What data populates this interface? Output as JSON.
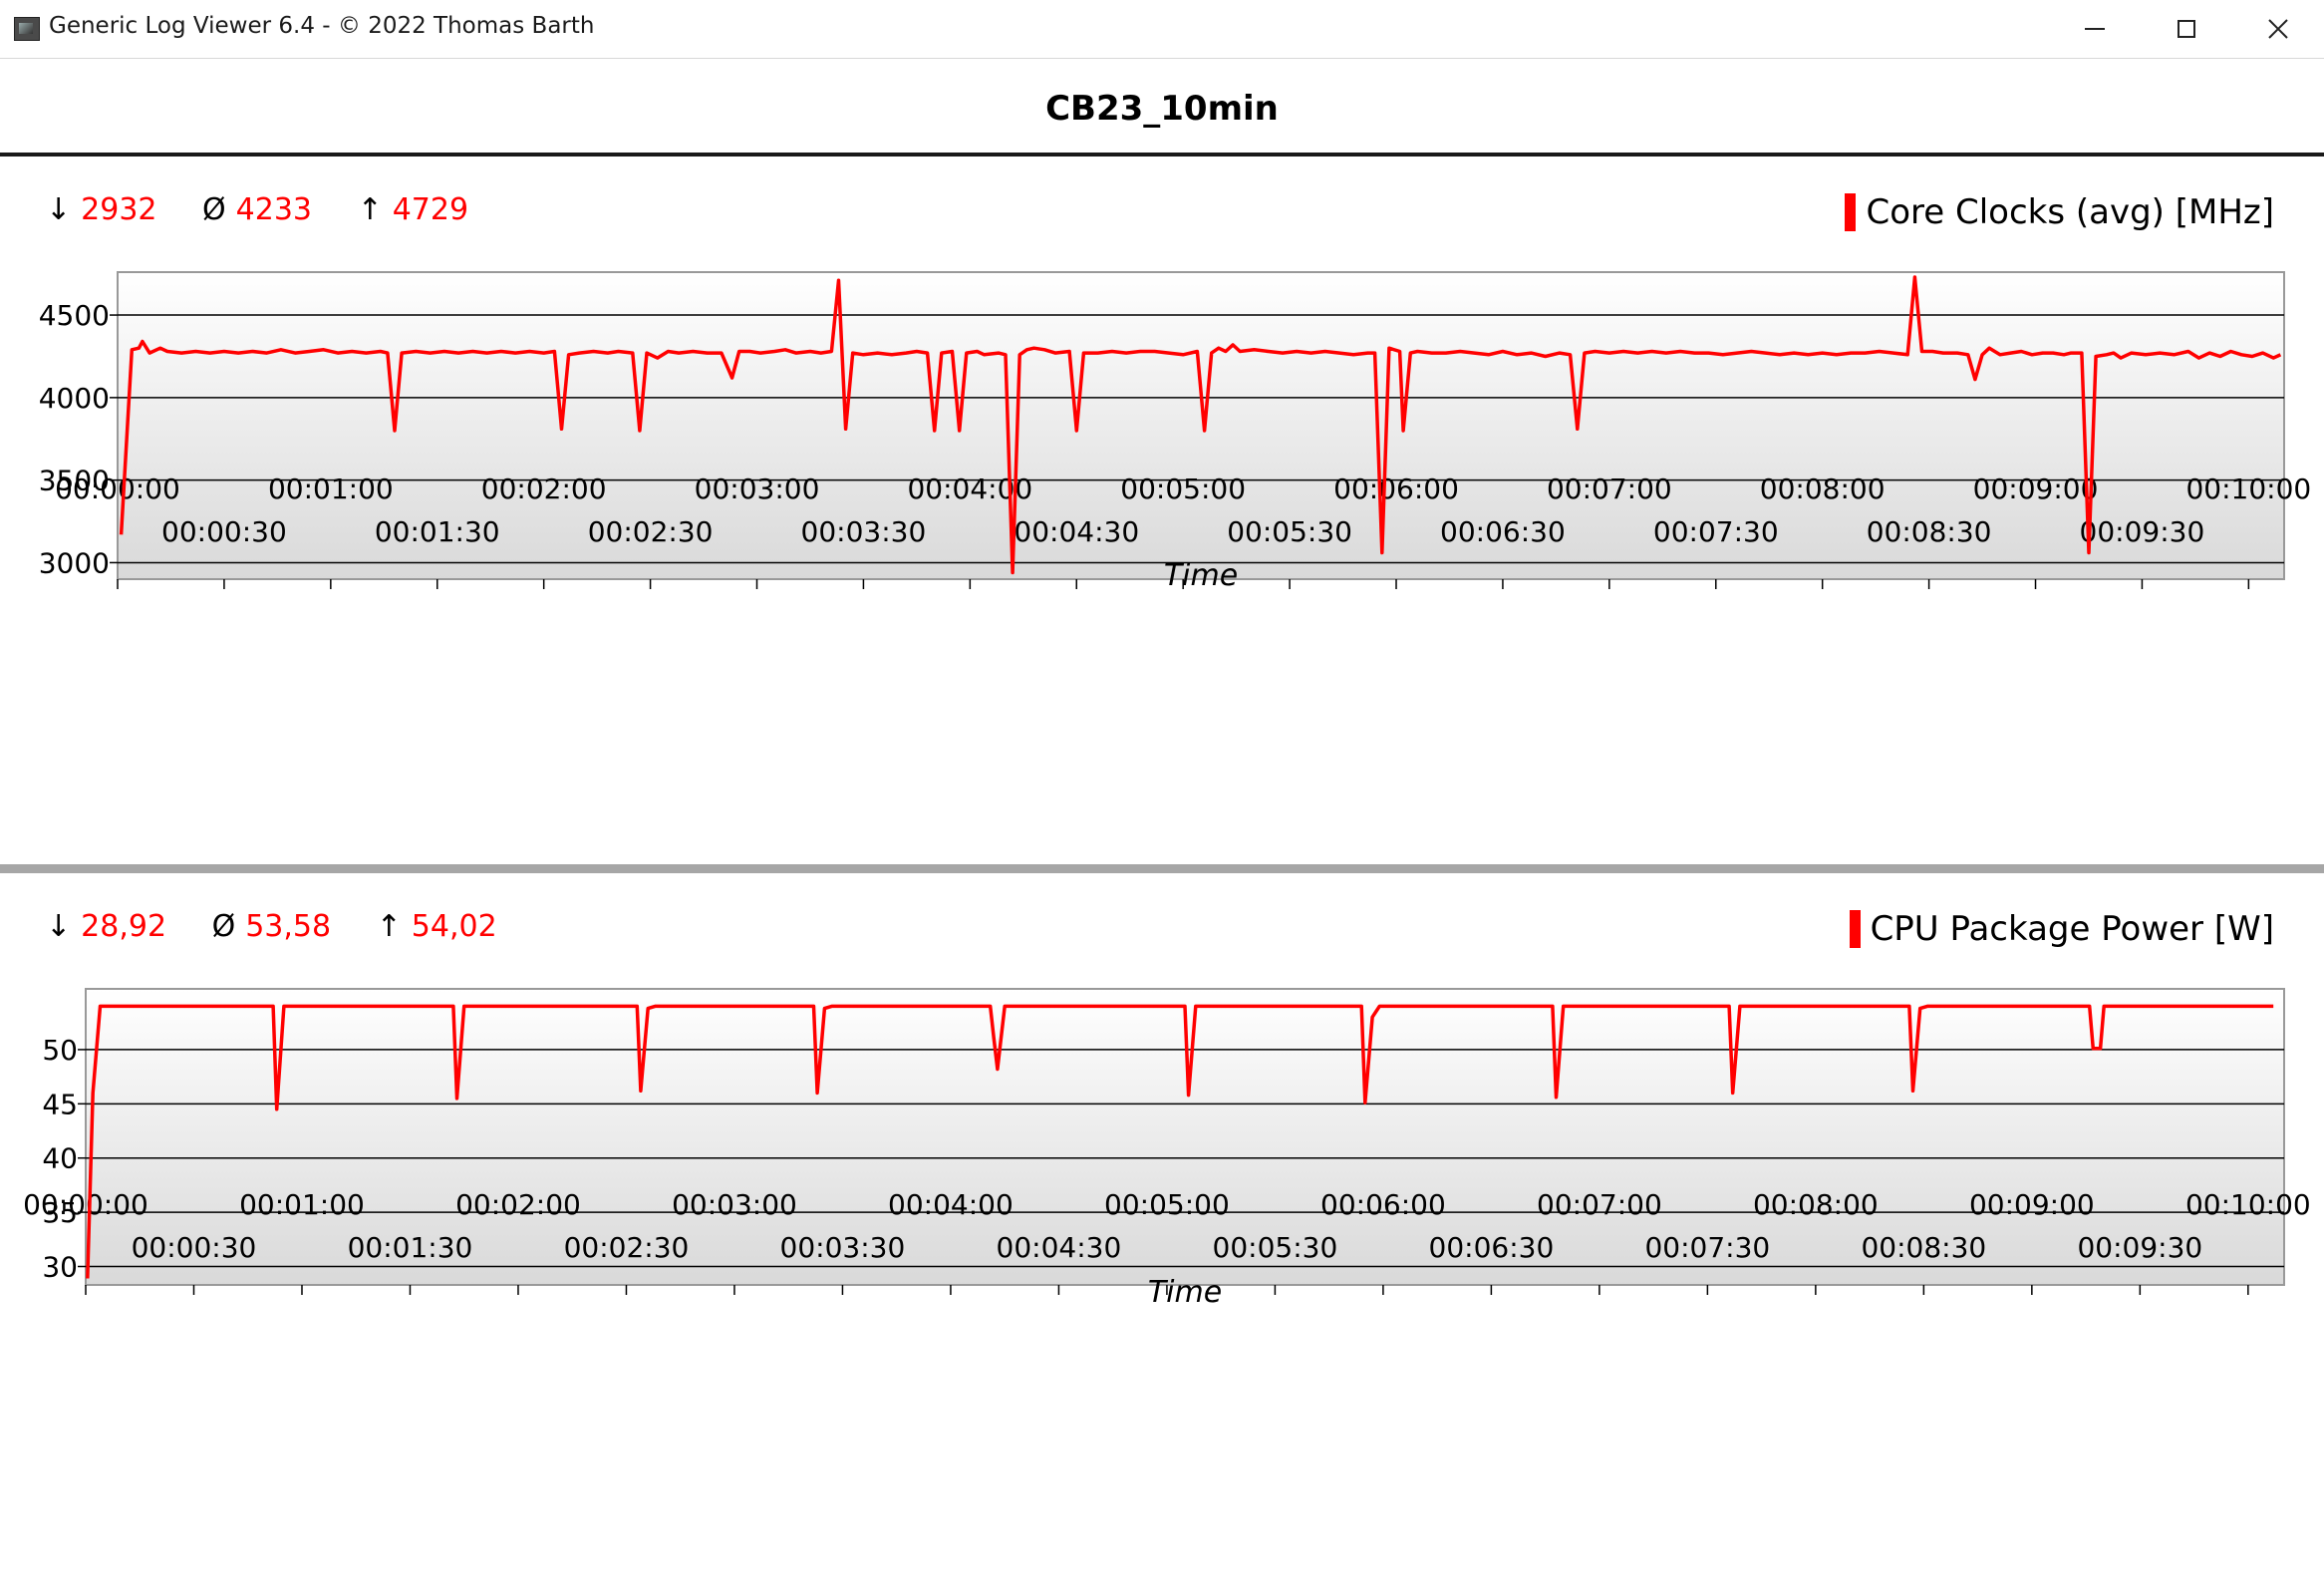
{
  "window": {
    "title": "Generic Log Viewer 6.4 - © 2022 Thomas Barth",
    "icon": "app-icon",
    "controls": [
      "minimize-icon",
      "maximize-icon",
      "close-icon"
    ]
  },
  "header": {
    "title": "CB23_10min"
  },
  "colors": {
    "series": "#ff0000",
    "grid": "#000000",
    "plot_bg_top": "#ffffff",
    "plot_bg_bottom": "#d9d9d9"
  },
  "chart_data": [
    {
      "type": "line",
      "title": "Core Clocks (avg) [MHz]",
      "series_name": "Core Clocks (avg) [MHz]",
      "stats": {
        "min_symbol": "↓",
        "min": "2932",
        "avg_symbol": "Ø",
        "avg": "4233",
        "max_symbol": "↑",
        "max": "4729"
      },
      "xlabel": "Time",
      "xlim": [
        0,
        610
      ],
      "ylim": [
        2900,
        4760
      ],
      "yticks": [
        3000,
        3500,
        4000,
        4500
      ],
      "xticks": [
        {
          "t": 0,
          "label": "00:00:00"
        },
        {
          "t": 30,
          "label": "00:00:30"
        },
        {
          "t": 60,
          "label": "00:01:00"
        },
        {
          "t": 90,
          "label": "00:01:30"
        },
        {
          "t": 120,
          "label": "00:02:00"
        },
        {
          "t": 150,
          "label": "00:02:30"
        },
        {
          "t": 180,
          "label": "00:03:00"
        },
        {
          "t": 210,
          "label": "00:03:30"
        },
        {
          "t": 240,
          "label": "00:04:00"
        },
        {
          "t": 270,
          "label": "00:04:30"
        },
        {
          "t": 300,
          "label": "00:05:00"
        },
        {
          "t": 330,
          "label": "00:05:30"
        },
        {
          "t": 360,
          "label": "00:06:00"
        },
        {
          "t": 390,
          "label": "00:06:30"
        },
        {
          "t": 420,
          "label": "00:07:00"
        },
        {
          "t": 450,
          "label": "00:07:30"
        },
        {
          "t": 480,
          "label": "00:08:00"
        },
        {
          "t": 510,
          "label": "00:08:30"
        },
        {
          "t": 540,
          "label": "00:09:00"
        },
        {
          "t": 570,
          "label": "00:09:30"
        },
        {
          "t": 600,
          "label": "00:10:00"
        }
      ],
      "points": [
        [
          1,
          3170
        ],
        [
          4,
          4290
        ],
        [
          6,
          4300
        ],
        [
          7,
          4340
        ],
        [
          9,
          4270
        ],
        [
          12,
          4300
        ],
        [
          14,
          4280
        ],
        [
          18,
          4270
        ],
        [
          22,
          4280
        ],
        [
          26,
          4270
        ],
        [
          30,
          4280
        ],
        [
          34,
          4270
        ],
        [
          38,
          4280
        ],
        [
          42,
          4270
        ],
        [
          46,
          4290
        ],
        [
          50,
          4270
        ],
        [
          54,
          4280
        ],
        [
          58,
          4290
        ],
        [
          62,
          4270
        ],
        [
          66,
          4280
        ],
        [
          70,
          4270
        ],
        [
          74,
          4280
        ],
        [
          76,
          4270
        ],
        [
          78,
          3800
        ],
        [
          80,
          4270
        ],
        [
          84,
          4280
        ],
        [
          88,
          4270
        ],
        [
          92,
          4280
        ],
        [
          96,
          4270
        ],
        [
          100,
          4280
        ],
        [
          104,
          4270
        ],
        [
          108,
          4280
        ],
        [
          112,
          4270
        ],
        [
          116,
          4280
        ],
        [
          120,
          4270
        ],
        [
          123,
          4280
        ],
        [
          125,
          3810
        ],
        [
          127,
          4260
        ],
        [
          130,
          4270
        ],
        [
          134,
          4280
        ],
        [
          138,
          4270
        ],
        [
          141,
          4280
        ],
        [
          145,
          4270
        ],
        [
          147,
          3800
        ],
        [
          149,
          4270
        ],
        [
          152,
          4240
        ],
        [
          155,
          4280
        ],
        [
          158,
          4270
        ],
        [
          162,
          4280
        ],
        [
          166,
          4270
        ],
        [
          170,
          4270
        ],
        [
          173,
          4120
        ],
        [
          175,
          4280
        ],
        [
          178,
          4280
        ],
        [
          181,
          4270
        ],
        [
          185,
          4280
        ],
        [
          188,
          4290
        ],
        [
          191,
          4270
        ],
        [
          195,
          4280
        ],
        [
          198,
          4270
        ],
        [
          201,
          4280
        ],
        [
          203,
          4710
        ],
        [
          205,
          3810
        ],
        [
          207,
          4270
        ],
        [
          210,
          4260
        ],
        [
          214,
          4270
        ],
        [
          218,
          4260
        ],
        [
          222,
          4270
        ],
        [
          225,
          4280
        ],
        [
          228,
          4270
        ],
        [
          230,
          3800
        ],
        [
          232,
          4270
        ],
        [
          235,
          4280
        ],
        [
          237,
          3800
        ],
        [
          239,
          4270
        ],
        [
          242,
          4280
        ],
        [
          244,
          4260
        ],
        [
          248,
          4270
        ],
        [
          250,
          4260
        ],
        [
          252,
          2940
        ],
        [
          254,
          4260
        ],
        [
          256,
          4290
        ],
        [
          258,
          4300
        ],
        [
          261,
          4290
        ],
        [
          264,
          4270
        ],
        [
          268,
          4280
        ],
        [
          270,
          3800
        ],
        [
          272,
          4270
        ],
        [
          276,
          4270
        ],
        [
          280,
          4280
        ],
        [
          284,
          4270
        ],
        [
          288,
          4280
        ],
        [
          292,
          4280
        ],
        [
          296,
          4270
        ],
        [
          300,
          4260
        ],
        [
          304,
          4280
        ],
        [
          306,
          3800
        ],
        [
          308,
          4270
        ],
        [
          310,
          4300
        ],
        [
          312,
          4280
        ],
        [
          314,
          4320
        ],
        [
          316,
          4280
        ],
        [
          320,
          4290
        ],
        [
          324,
          4280
        ],
        [
          328,
          4270
        ],
        [
          332,
          4280
        ],
        [
          336,
          4270
        ],
        [
          340,
          4280
        ],
        [
          344,
          4270
        ],
        [
          348,
          4260
        ],
        [
          352,
          4270
        ],
        [
          354,
          4270
        ],
        [
          356,
          3060
        ],
        [
          358,
          4300
        ],
        [
          361,
          4280
        ],
        [
          362,
          3800
        ],
        [
          364,
          4270
        ],
        [
          366,
          4280
        ],
        [
          370,
          4270
        ],
        [
          374,
          4270
        ],
        [
          378,
          4280
        ],
        [
          382,
          4270
        ],
        [
          386,
          4260
        ],
        [
          390,
          4280
        ],
        [
          394,
          4260
        ],
        [
          398,
          4270
        ],
        [
          402,
          4250
        ],
        [
          406,
          4270
        ],
        [
          409,
          4260
        ],
        [
          411,
          3810
        ],
        [
          413,
          4270
        ],
        [
          416,
          4280
        ],
        [
          420,
          4270
        ],
        [
          424,
          4280
        ],
        [
          428,
          4270
        ],
        [
          432,
          4280
        ],
        [
          436,
          4270
        ],
        [
          440,
          4280
        ],
        [
          444,
          4270
        ],
        [
          448,
          4270
        ],
        [
          452,
          4260
        ],
        [
          456,
          4270
        ],
        [
          460,
          4280
        ],
        [
          464,
          4270
        ],
        [
          468,
          4260
        ],
        [
          472,
          4270
        ],
        [
          476,
          4260
        ],
        [
          480,
          4270
        ],
        [
          484,
          4260
        ],
        [
          488,
          4270
        ],
        [
          492,
          4270
        ],
        [
          496,
          4280
        ],
        [
          500,
          4270
        ],
        [
          504,
          4260
        ],
        [
          506,
          4730
        ],
        [
          508,
          4280
        ],
        [
          511,
          4280
        ],
        [
          514,
          4270
        ],
        [
          518,
          4270
        ],
        [
          521,
          4260
        ],
        [
          523,
          4110
        ],
        [
          525,
          4260
        ],
        [
          527,
          4300
        ],
        [
          530,
          4260
        ],
        [
          533,
          4270
        ],
        [
          536,
          4280
        ],
        [
          539,
          4260
        ],
        [
          542,
          4270
        ],
        [
          545,
          4270
        ],
        [
          548,
          4260
        ],
        [
          550,
          4270
        ],
        [
          553,
          4270
        ],
        [
          555,
          3060
        ],
        [
          557,
          4250
        ],
        [
          560,
          4260
        ],
        [
          562,
          4270
        ],
        [
          564,
          4240
        ],
        [
          567,
          4270
        ],
        [
          571,
          4260
        ],
        [
          575,
          4270
        ],
        [
          579,
          4260
        ],
        [
          583,
          4280
        ],
        [
          586,
          4240
        ],
        [
          589,
          4270
        ],
        [
          592,
          4250
        ],
        [
          595,
          4280
        ],
        [
          598,
          4260
        ],
        [
          601,
          4250
        ],
        [
          604,
          4270
        ],
        [
          607,
          4240
        ],
        [
          609,
          4260
        ]
      ]
    },
    {
      "type": "line",
      "title": "CPU Package Power [W]",
      "series_name": "CPU Package Power [W]",
      "stats": {
        "min_symbol": "↓",
        "min": "28,92",
        "avg_symbol": "Ø",
        "avg": "53,58",
        "max_symbol": "↑",
        "max": "54,02"
      },
      "xlabel": "Time",
      "xlim": [
        0,
        610
      ],
      "ylim": [
        28.3,
        55.6
      ],
      "yticks": [
        30,
        35,
        40,
        45,
        50
      ],
      "xticks": [
        {
          "t": 0,
          "label": "00:00:00"
        },
        {
          "t": 30,
          "label": "00:00:30"
        },
        {
          "t": 60,
          "label": "00:01:00"
        },
        {
          "t": 90,
          "label": "00:01:30"
        },
        {
          "t": 120,
          "label": "00:02:00"
        },
        {
          "t": 150,
          "label": "00:02:30"
        },
        {
          "t": 180,
          "label": "00:03:00"
        },
        {
          "t": 210,
          "label": "00:03:30"
        },
        {
          "t": 240,
          "label": "00:04:00"
        },
        {
          "t": 270,
          "label": "00:04:30"
        },
        {
          "t": 300,
          "label": "00:05:00"
        },
        {
          "t": 330,
          "label": "00:05:30"
        },
        {
          "t": 360,
          "label": "00:06:00"
        },
        {
          "t": 390,
          "label": "00:06:30"
        },
        {
          "t": 420,
          "label": "00:07:00"
        },
        {
          "t": 450,
          "label": "00:07:30"
        },
        {
          "t": 480,
          "label": "00:08:00"
        },
        {
          "t": 510,
          "label": "00:08:30"
        },
        {
          "t": 540,
          "label": "00:09:00"
        },
        {
          "t": 570,
          "label": "00:09:30"
        },
        {
          "t": 600,
          "label": "00:10:00"
        }
      ],
      "points": [
        [
          0.5,
          28.9
        ],
        [
          2,
          46
        ],
        [
          4,
          54.0
        ],
        [
          50,
          54.0
        ],
        [
          52,
          54.0
        ],
        [
          53,
          44.5
        ],
        [
          55,
          54.0
        ],
        [
          100,
          54.0
        ],
        [
          102,
          54.0
        ],
        [
          103,
          45.5
        ],
        [
          105,
          54.0
        ],
        [
          152,
          54.0
        ],
        [
          153,
          54.0
        ],
        [
          154,
          46.2
        ],
        [
          156,
          53.8
        ],
        [
          158,
          54.0
        ],
        [
          201,
          54.0
        ],
        [
          202,
          54.0
        ],
        [
          203,
          46.0
        ],
        [
          205,
          53.8
        ],
        [
          207,
          54.0
        ],
        [
          251,
          54.0
        ],
        [
          252,
          51
        ],
        [
          253,
          48.2
        ],
        [
          255,
          54.0
        ],
        [
          304,
          54.0
        ],
        [
          305,
          54.0
        ],
        [
          306,
          45.8
        ],
        [
          308,
          54.0
        ],
        [
          353,
          54.0
        ],
        [
          354,
          54.0
        ],
        [
          355,
          45.1
        ],
        [
          357,
          53
        ],
        [
          359,
          54.0
        ],
        [
          406,
          54.0
        ],
        [
          407,
          54.0
        ],
        [
          408,
          45.6
        ],
        [
          410,
          54.0
        ],
        [
          455,
          54.0
        ],
        [
          456,
          54.0
        ],
        [
          457,
          46.0
        ],
        [
          459,
          54.0
        ],
        [
          505,
          54.0
        ],
        [
          506,
          54.0
        ],
        [
          507,
          46.2
        ],
        [
          509,
          53.8
        ],
        [
          511,
          54.0
        ],
        [
          555,
          54.0
        ],
        [
          556,
          54.0
        ],
        [
          557,
          50.1
        ],
        [
          559,
          50.1
        ],
        [
          560,
          54.0
        ],
        [
          607,
          54.0
        ]
      ]
    }
  ]
}
